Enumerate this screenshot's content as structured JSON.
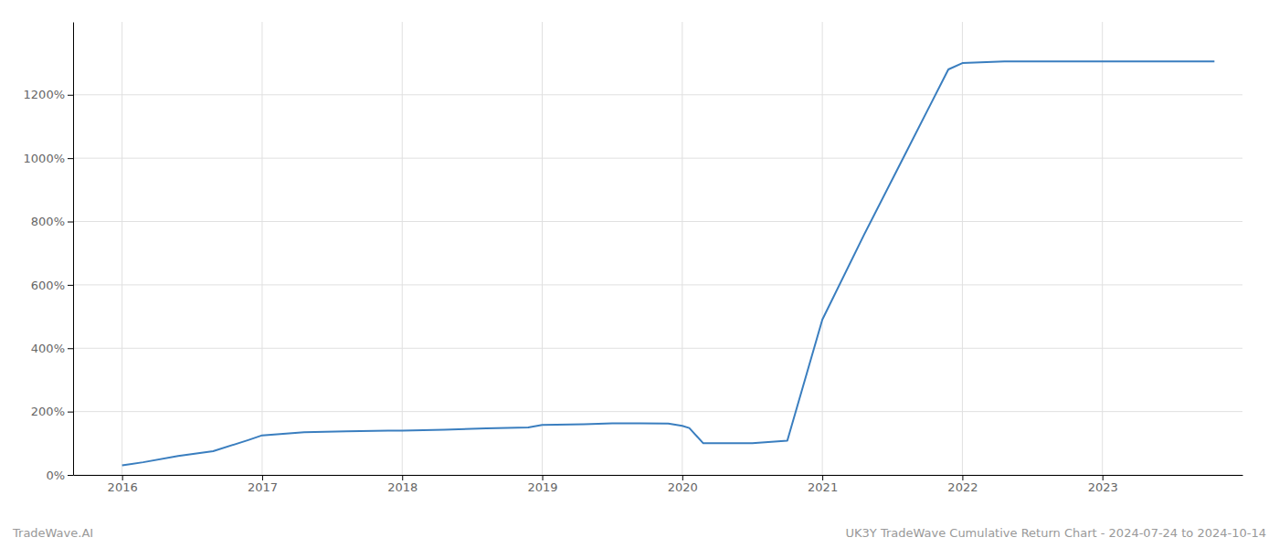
{
  "chart_data": {
    "type": "line",
    "title": "UK3Y TradeWave Cumulative Return Chart - 2024-07-24 to 2024-10-14",
    "annotations": [
      "TradeWave.AI"
    ],
    "x": [
      2016.0,
      2016.15,
      2016.4,
      2016.65,
      2016.9,
      2017.0,
      2017.3,
      2017.6,
      2017.9,
      2018.0,
      2018.3,
      2018.6,
      2018.9,
      2019.0,
      2019.3,
      2019.5,
      2019.7,
      2019.9,
      2020.0,
      2020.05,
      2020.15,
      2020.5,
      2020.75,
      2021.0,
      2021.3,
      2021.6,
      2021.9,
      2022.0,
      2022.3,
      2022.6,
      2022.9,
      2023.0,
      2023.3,
      2023.6,
      2023.8
    ],
    "values": [
      30,
      40,
      60,
      75,
      110,
      125,
      135,
      138,
      140,
      140,
      143,
      147,
      150,
      158,
      160,
      163,
      163,
      162,
      155,
      148,
      100,
      100,
      108,
      490,
      760,
      1020,
      1280,
      1300,
      1305,
      1305,
      1305,
      1305,
      1305,
      1305,
      1305
    ],
    "color": "#3a7ebf",
    "xlim": [
      2015.65,
      2024.0
    ],
    "ylim": [
      0,
      1430
    ],
    "xticks": [
      2016,
      2017,
      2018,
      2019,
      2020,
      2021,
      2022,
      2023
    ],
    "yticks": [
      {
        "value": 0,
        "label": "0%"
      },
      {
        "value": 200,
        "label": "200%"
      },
      {
        "value": 400,
        "label": "400%"
      },
      {
        "value": 600,
        "label": "600%"
      },
      {
        "value": 800,
        "label": "800%"
      },
      {
        "value": 1000,
        "label": "1000%"
      },
      {
        "value": 1200,
        "label": "1200%"
      }
    ],
    "grid": true
  }
}
